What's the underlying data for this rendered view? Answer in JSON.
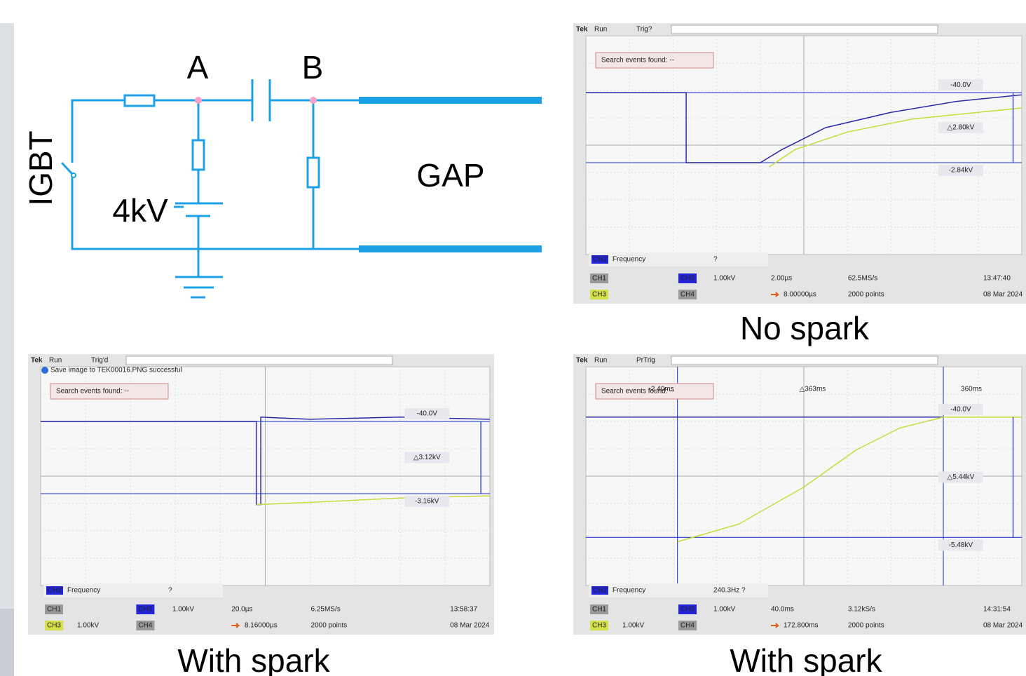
{
  "circuit": {
    "node_a": "A",
    "node_b": "B",
    "switch": "IGBT",
    "source": "4kV",
    "gap": "GAP"
  },
  "scopes": [
    {
      "caption": "No spark",
      "brand": "Tek",
      "state": "Run",
      "trigger": "Trig?",
      "search": "Search events found: --",
      "ref_top": "-40.0V",
      "delta": "△2.80kV",
      "ref_bottom": "-2.84kV",
      "meas_channel": "CH2",
      "meas": "Frequency",
      "meas_value": "?",
      "ch1": "CH1",
      "ch2": "CH2",
      "ch2_scale": "1.00kV",
      "ch3": "CH3",
      "ch4": "CH4",
      "timebase": "2.00µs",
      "sample_rate": "62.5MS/s",
      "position": "8.00000µs",
      "points": "2000 points",
      "time": "13:47:40",
      "date": "08 Mar 2024"
    },
    {
      "caption": "With spark",
      "brand": "Tek",
      "state": "Run",
      "trigger": "Trig'd",
      "notice": "Save image to TEK00016.PNG successful",
      "search": "Search events found: --",
      "ref_top": "-40.0V",
      "delta": "△3.12kV",
      "ref_bottom": "-3.16kV",
      "meas_channel": "CH2",
      "meas": "Frequency",
      "meas_value": "?",
      "ch1": "CH1",
      "ch2": "CH2",
      "ch2_scale": "1.00kV",
      "ch3": "CH3",
      "ch3_scale": "1.00kV",
      "ch4": "CH4",
      "timebase": "20.0µs",
      "sample_rate": "6.25MS/s",
      "position": "8.16000µs",
      "points": "2000 points",
      "time": "13:58:37",
      "date": "08 Mar 2024"
    },
    {
      "caption": "With spark",
      "brand": "Tek",
      "state": "Run",
      "trigger": "PrTrig",
      "search": "Search events found: --",
      "cursor_a": "-2.40ms",
      "cursor_delta": "△363ms",
      "cursor_b": "360ms",
      "ref_top": "-40.0V",
      "delta": "△5.44kV",
      "ref_bottom": "-5.48kV",
      "meas_channel": "CH2",
      "meas": "Frequency",
      "meas_value": "240.3Hz ?",
      "ch1": "CH1",
      "ch2": "CH2",
      "ch2_scale": "1.00kV",
      "ch3": "CH3",
      "ch3_scale": "1.00kV",
      "ch4": "CH4",
      "timebase": "40.0ms",
      "sample_rate": "3.12kS/s",
      "position": "172.800ms",
      "points": "2000 points",
      "time": "14:31:54",
      "date": "08 Mar 2024"
    }
  ]
}
